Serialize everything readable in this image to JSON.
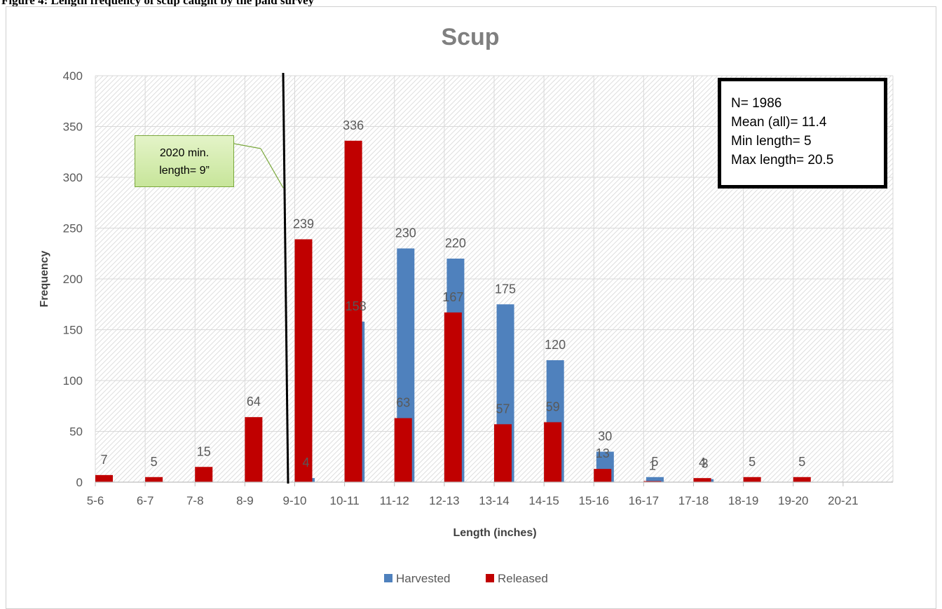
{
  "header": {
    "caption": "Figure 4: Length frequency of scup caught by the paid survey"
  },
  "chart_data": {
    "type": "bar",
    "title": "Scup",
    "xlabel": "Length (inches)",
    "ylabel": "Frequency",
    "ylim": [
      0,
      400
    ],
    "yticks": [
      0,
      50,
      100,
      150,
      200,
      250,
      300,
      350,
      400
    ],
    "grid": true,
    "legend_position": "bottom",
    "categories": [
      "5-6",
      "6-7",
      "7-8",
      "8-9",
      "9-10",
      "10-11",
      "11-12",
      "12-13",
      "13-14",
      "14-15",
      "15-16",
      "16-17",
      "17-18",
      "18-19",
      "19-20",
      "20-21"
    ],
    "series": [
      {
        "name": "Harvested",
        "color": "#4f81bd",
        "values": [
          null,
          null,
          null,
          null,
          4,
          158,
          230,
          220,
          175,
          120,
          30,
          5,
          3,
          null,
          null,
          null
        ]
      },
      {
        "name": "Released",
        "color": "#c00000",
        "values": [
          7,
          5,
          15,
          64,
          239,
          336,
          63,
          167,
          57,
          59,
          13,
          1,
          4,
          5,
          5,
          null
        ]
      }
    ],
    "data_labels": [
      {
        "category": "5-6",
        "series": "Released",
        "value": 7
      },
      {
        "category": "6-7",
        "series": "Released",
        "value": 5
      },
      {
        "category": "7-8",
        "series": "Released",
        "value": 15
      },
      {
        "category": "8-9",
        "series": "Released",
        "value": 64
      },
      {
        "category": "9-10",
        "series": "Harvested",
        "value": 4
      },
      {
        "category": "9-10",
        "series": "Released",
        "value": 239
      },
      {
        "category": "10-11",
        "series": "Harvested",
        "value": 158
      },
      {
        "category": "10-11",
        "series": "Released",
        "value": 336
      },
      {
        "category": "11-12",
        "series": "Harvested",
        "value": 230
      },
      {
        "category": "11-12",
        "series": "Released",
        "value": 63
      },
      {
        "category": "12-13",
        "series": "Harvested",
        "value": 220
      },
      {
        "category": "12-13",
        "series": "Released",
        "value": 167
      },
      {
        "category": "13-14",
        "series": "Harvested",
        "value": 175
      },
      {
        "category": "13-14",
        "series": "Released",
        "value": 57
      },
      {
        "category": "14-15",
        "series": "Harvested",
        "value": 120
      },
      {
        "category": "14-15",
        "series": "Released",
        "value": 59
      },
      {
        "category": "15-16",
        "series": "Harvested",
        "value": 30
      },
      {
        "category": "15-16",
        "series": "Released",
        "value": 13
      },
      {
        "category": "16-17",
        "series": "Harvested",
        "value": 5
      },
      {
        "category": "16-17",
        "series": "Released",
        "value": 1
      },
      {
        "category": "17-18",
        "series": "Harvested",
        "value": 3
      },
      {
        "category": "17-18",
        "series": "Released",
        "value": 4
      },
      {
        "category": "18-19",
        "series": "Released",
        "value": 5
      },
      {
        "category": "19-20",
        "series": "Released",
        "value": 5
      }
    ],
    "reference_line": {
      "x_value": 9,
      "label_line1": "2020  min.",
      "label_line2": "length= 9”"
    },
    "stats_box": [
      "N= 1986",
      "Mean (all)= 11.4",
      "Min length= 5",
      "Max length= 20.5"
    ]
  }
}
